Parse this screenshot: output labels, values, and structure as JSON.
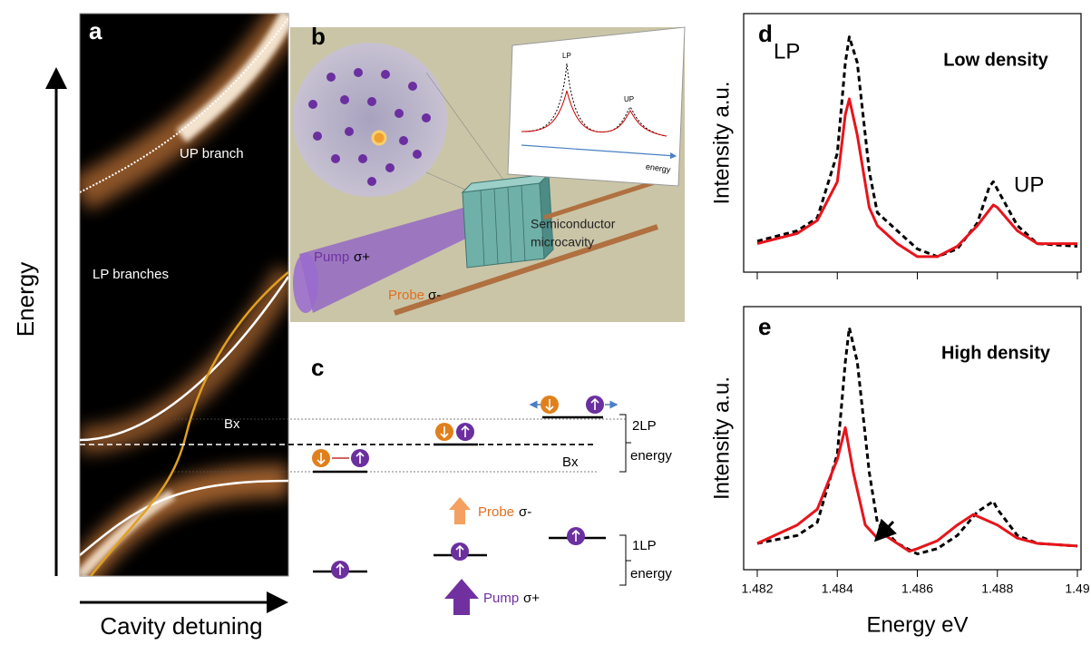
{
  "panels": {
    "a": {
      "label": "a",
      "y_axis": "Energy",
      "x_axis": "Cavity detuning",
      "up_branch": "UP branch",
      "lp_branches": "LP  branches",
      "bx": "Bx"
    },
    "b": {
      "label": "b",
      "pump": "Pump",
      "pump_pol": "σ+",
      "probe": "Probe",
      "probe_pol": "σ-",
      "sample_line1": "Semiconductor",
      "sample_line2": "microcavity",
      "inset_lp": "LP",
      "inset_up": "UP",
      "inset_axis": "energy"
    },
    "c": {
      "label": "c",
      "bx": "Bx",
      "two_lp_1": "2LP",
      "two_lp_2": "energy",
      "one_lp_1": "1LP",
      "one_lp_2": "energy",
      "probe": "Probe",
      "probe_pol": "σ-",
      "pump": "Pump",
      "pump_pol": "σ+"
    }
  },
  "chart_data": [
    {
      "type": "line",
      "panel": "d",
      "title": "Low density",
      "y_label": "Intensity a.u.",
      "annotations": [
        "LP",
        "UP"
      ],
      "xlim": [
        1.482,
        1.49
      ],
      "ylim": [
        0,
        1
      ],
      "series": [
        {
          "color": "#000000",
          "style": "dashed",
          "x": [
            1.482,
            1.483,
            1.4835,
            1.484,
            1.4842,
            1.4843,
            1.4845,
            1.4848,
            1.485,
            1.4855,
            1.486,
            1.4865,
            1.487,
            1.4875,
            1.4878,
            1.4879,
            1.488,
            1.4885,
            1.489,
            1.49
          ],
          "values": [
            0.12,
            0.16,
            0.21,
            0.46,
            0.81,
            0.91,
            0.81,
            0.39,
            0.23,
            0.16,
            0.09,
            0.06,
            0.09,
            0.19,
            0.33,
            0.35,
            0.32,
            0.18,
            0.11,
            0.1
          ]
        },
        {
          "color": "#e8141b",
          "style": "solid",
          "x": [
            1.482,
            1.483,
            1.4835,
            1.484,
            1.4842,
            1.4843,
            1.4845,
            1.4848,
            1.485,
            1.4855,
            1.486,
            1.4865,
            1.487,
            1.4875,
            1.4879,
            1.488,
            1.4885,
            1.489,
            1.49
          ],
          "values": [
            0.11,
            0.15,
            0.2,
            0.35,
            0.61,
            0.67,
            0.53,
            0.25,
            0.18,
            0.11,
            0.06,
            0.06,
            0.1,
            0.18,
            0.26,
            0.25,
            0.16,
            0.11,
            0.11
          ]
        }
      ]
    },
    {
      "type": "line",
      "panel": "e",
      "title": "High density",
      "y_label": "Intensity a.u.",
      "x_label": "Energy eV",
      "xlim": [
        1.482,
        1.49
      ],
      "ylim": [
        0,
        1
      ],
      "xticks": [
        1.482,
        1.484,
        1.486,
        1.488,
        1.49
      ],
      "series": [
        {
          "color": "#000000",
          "style": "dashed",
          "x": [
            1.482,
            1.483,
            1.4835,
            1.484,
            1.4842,
            1.4843,
            1.4845,
            1.4848,
            1.485,
            1.4855,
            1.486,
            1.4865,
            1.487,
            1.4875,
            1.4879,
            1.488,
            1.4885,
            1.489,
            1.49
          ],
          "values": [
            0.1,
            0.13,
            0.18,
            0.44,
            0.79,
            0.92,
            0.79,
            0.37,
            0.18,
            0.1,
            0.06,
            0.08,
            0.13,
            0.22,
            0.26,
            0.23,
            0.13,
            0.1,
            0.09
          ]
        },
        {
          "color": "#e8141b",
          "style": "solid",
          "x": [
            1.482,
            1.483,
            1.4835,
            1.484,
            1.4842,
            1.4844,
            1.4847,
            1.485,
            1.4852,
            1.4855,
            1.4858,
            1.486,
            1.4865,
            1.487,
            1.4874,
            1.488,
            1.4885,
            1.489,
            1.49
          ],
          "values": [
            0.1,
            0.17,
            0.23,
            0.42,
            0.54,
            0.37,
            0.17,
            0.12,
            0.13,
            0.1,
            0.07,
            0.08,
            0.11,
            0.17,
            0.21,
            0.17,
            0.12,
            0.1,
            0.09
          ]
        }
      ]
    }
  ]
}
